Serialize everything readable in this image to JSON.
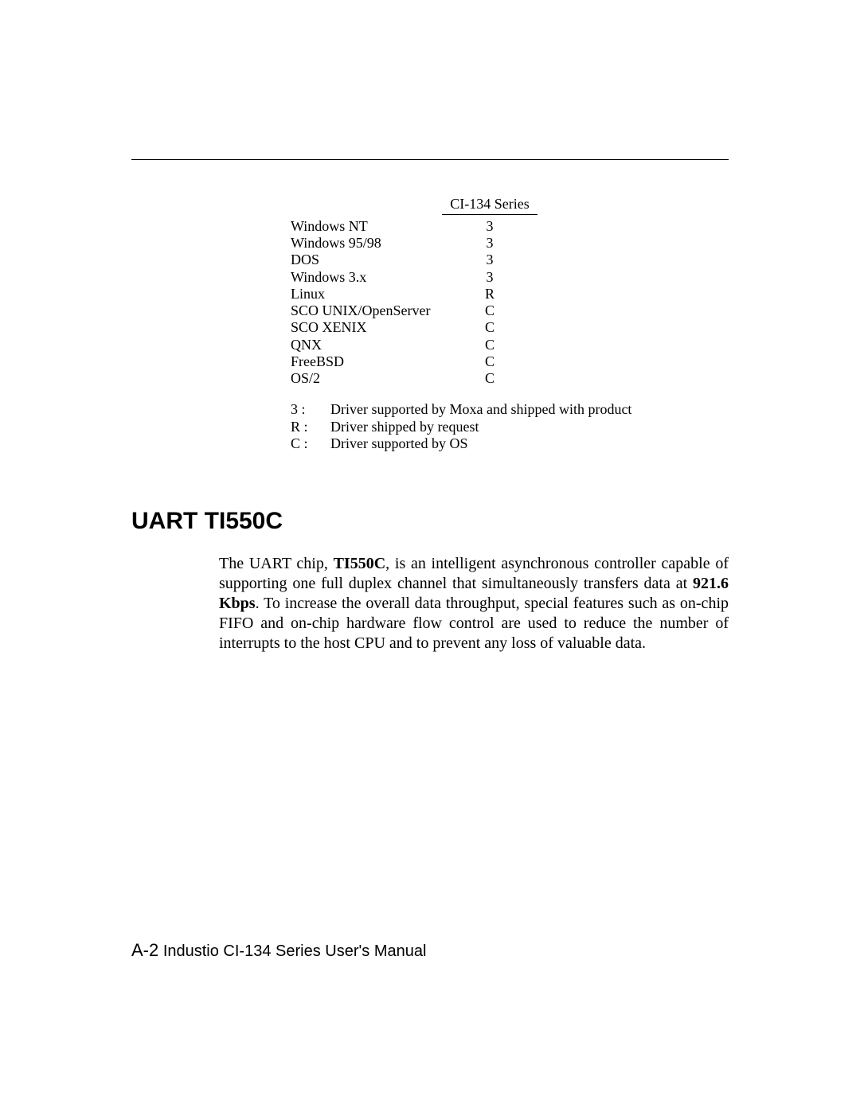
{
  "table": {
    "header_col2": "CI-134 Series",
    "rows": [
      {
        "os": "Windows NT",
        "val": "3"
      },
      {
        "os": "Windows 95/98",
        "val": "3"
      },
      {
        "os": "DOS",
        "val": "3"
      },
      {
        "os": "Windows 3.x",
        "val": "3"
      },
      {
        "os": "Linux",
        "val": "R"
      },
      {
        "os": "SCO UNIX/OpenServer",
        "val": "C"
      },
      {
        "os": "SCO XENIX",
        "val": "C"
      },
      {
        "os": "QNX",
        "val": "C"
      },
      {
        "os": "FreeBSD",
        "val": "C"
      },
      {
        "os": "OS/2",
        "val": "C"
      }
    ],
    "legend": [
      {
        "key": "3 :",
        "desc": "Driver supported by Moxa and shipped with product"
      },
      {
        "key": "R :",
        "desc": "Driver shipped by request"
      },
      {
        "key": "C :",
        "desc": "Driver supported by OS"
      }
    ]
  },
  "section": {
    "heading": "UART TI550C",
    "para_pre": "The UART chip, ",
    "para_bold1": "TI550C",
    "para_mid": ", is an intelligent asynchronous controller capable of supporting one full duplex channel that simultaneously transfers data at ",
    "para_bold2": "921.6 Kbps",
    "para_post": ". To increase the overall data throughput, special features such as on-chip FIFO and on-chip hardware flow control are used to reduce the number of interrupts to the host CPU and to prevent any loss of valuable data."
  },
  "footer": {
    "pagenum": "A-2",
    "title": "Industio CI-134 Series User's Manual"
  }
}
